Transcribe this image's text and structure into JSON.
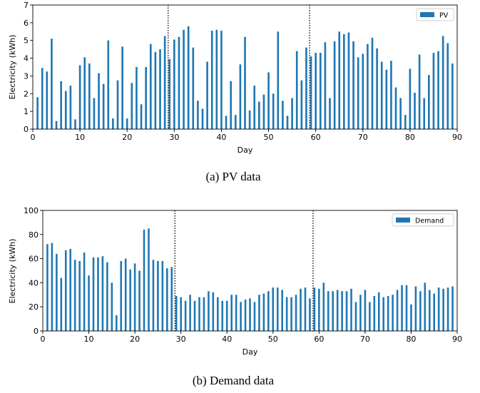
{
  "chart_data": [
    {
      "type": "bar",
      "caption": "(a) PV data",
      "xlabel": "Day",
      "ylabel": "Electricity (kWh)",
      "xlim": [
        0,
        90
      ],
      "ylim": [
        0,
        7
      ],
      "xticks": [
        0,
        10,
        20,
        30,
        40,
        50,
        60,
        70,
        80,
        90
      ],
      "yticks": [
        0,
        1,
        2,
        3,
        4,
        5,
        6,
        7
      ],
      "legend": {
        "label": "PV",
        "placement": "top-right"
      },
      "color": "#1f77b4",
      "vlines": [
        28.7,
        58.7
      ],
      "series": [
        {
          "name": "PV",
          "x": [
            1,
            2,
            3,
            4,
            5,
            6,
            7,
            8,
            9,
            10,
            11,
            12,
            13,
            14,
            15,
            16,
            17,
            18,
            19,
            20,
            21,
            22,
            23,
            24,
            25,
            26,
            27,
            28,
            29,
            30,
            31,
            32,
            33,
            34,
            35,
            36,
            37,
            38,
            39,
            40,
            41,
            42,
            43,
            44,
            45,
            46,
            47,
            48,
            49,
            50,
            51,
            52,
            53,
            54,
            55,
            56,
            57,
            58,
            59,
            60,
            61,
            62,
            63,
            64,
            65,
            66,
            67,
            68,
            69,
            70,
            71,
            72,
            73,
            74,
            75,
            76,
            77,
            78,
            79,
            80,
            81,
            82,
            83,
            84,
            85,
            86,
            87,
            88,
            89
          ],
          "values": [
            1.8,
            3.45,
            3.25,
            5.1,
            0.45,
            2.7,
            2.15,
            2.45,
            0.55,
            3.6,
            4.05,
            3.7,
            1.75,
            3.15,
            2.55,
            5.0,
            0.6,
            2.75,
            4.65,
            0.6,
            2.6,
            3.5,
            1.4,
            3.5,
            4.8,
            4.35,
            4.5,
            5.25,
            3.95,
            5.05,
            5.2,
            5.6,
            5.8,
            4.6,
            1.6,
            1.15,
            3.8,
            5.55,
            5.6,
            5.55,
            0.75,
            2.7,
            0.8,
            3.65,
            5.2,
            1.05,
            2.45,
            1.55,
            1.95,
            3.2,
            2.0,
            5.5,
            1.6,
            0.75,
            1.75,
            4.4,
            2.75,
            4.6,
            4.1,
            4.3,
            4.3,
            4.9,
            1.75,
            4.95,
            5.5,
            5.35,
            5.45,
            4.95,
            4.05,
            4.25,
            4.8,
            5.15,
            4.55,
            3.8,
            3.35,
            3.85,
            2.35,
            1.75,
            0.8,
            3.4,
            2.05,
            4.2,
            1.75,
            3.05,
            4.3,
            4.4,
            5.25,
            4.85,
            3.7
          ]
        }
      ]
    },
    {
      "type": "bar",
      "caption": "(b) Demand data",
      "xlabel": "Day",
      "ylabel": "Electricity (kWh)",
      "xlim": [
        0,
        90
      ],
      "ylim": [
        0,
        100
      ],
      "xticks": [
        0,
        10,
        20,
        30,
        40,
        50,
        60,
        70,
        80,
        90
      ],
      "yticks": [
        0,
        20,
        40,
        60,
        80,
        100
      ],
      "legend": {
        "label": "Demand",
        "placement": "top-right"
      },
      "color": "#1f77b4",
      "vlines": [
        28.7,
        58.7
      ],
      "series": [
        {
          "name": "Demand",
          "x": [
            1,
            2,
            3,
            4,
            5,
            6,
            7,
            8,
            9,
            10,
            11,
            12,
            13,
            14,
            15,
            16,
            17,
            18,
            19,
            20,
            21,
            22,
            23,
            24,
            25,
            26,
            27,
            28,
            29,
            30,
            31,
            32,
            33,
            34,
            35,
            36,
            37,
            38,
            39,
            40,
            41,
            42,
            43,
            44,
            45,
            46,
            47,
            48,
            49,
            50,
            51,
            52,
            53,
            54,
            55,
            56,
            57,
            58,
            59,
            60,
            61,
            62,
            63,
            64,
            65,
            66,
            67,
            68,
            69,
            70,
            71,
            72,
            73,
            74,
            75,
            76,
            77,
            78,
            79,
            80,
            81,
            82,
            83,
            84,
            85,
            86,
            87,
            88,
            89
          ],
          "values": [
            72,
            73,
            64,
            44,
            67,
            68,
            59,
            58,
            65,
            46,
            61,
            61,
            62,
            57,
            40,
            13,
            58,
            60,
            51,
            56,
            50,
            84,
            85,
            59,
            58,
            58,
            52,
            53,
            29,
            28,
            25,
            30,
            25,
            28,
            28,
            33,
            32,
            28,
            25,
            25,
            30,
            30,
            24,
            26,
            27,
            24,
            30,
            31,
            33,
            36,
            36,
            34,
            28,
            28,
            30,
            35,
            36,
            27,
            36,
            35,
            40,
            33,
            33,
            34,
            33,
            33,
            35,
            24,
            30,
            34,
            24,
            29,
            32,
            28,
            29,
            30,
            34,
            38,
            38,
            22,
            37,
            33,
            40,
            34,
            31,
            36,
            35,
            36,
            37
          ]
        }
      ]
    }
  ]
}
